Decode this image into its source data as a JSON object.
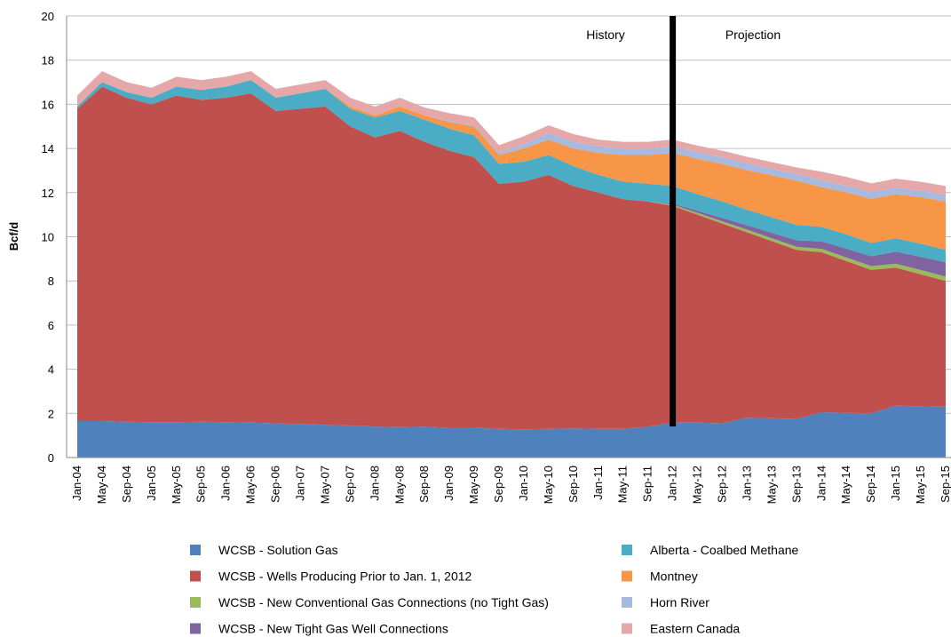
{
  "chart_data": {
    "type": "stacked_area",
    "y_label": "Bcf/d",
    "annotations": [
      "History",
      "Projection"
    ],
    "categories": [
      "Jan-04",
      "May-04",
      "Sep-04",
      "Jan-05",
      "May-05",
      "Sep-05",
      "Jan-06",
      "May-06",
      "Sep-06",
      "Jan-07",
      "May-07",
      "Sep-07",
      "Jan-08",
      "May-08",
      "Sep-08",
      "Jan-09",
      "May-09",
      "Sep-09",
      "Jan-10",
      "May-10",
      "Sep-10",
      "Jan-11",
      "May-11",
      "Sep-11",
      "Jan-12",
      "May-12",
      "Sep-12",
      "Jan-13",
      "May-13",
      "Sep-13",
      "Jan-14",
      "May-14",
      "Sep-14",
      "Jan-15",
      "May-15",
      "Sep-15"
    ],
    "ylim": [
      0,
      20
    ],
    "yticks": [
      0,
      2,
      4,
      6,
      8,
      10,
      12,
      14,
      16,
      18,
      20
    ],
    "grid": true,
    "series": [
      {
        "name": "WCSB - Solution Gas",
        "color": "#4f81bd",
        "values": [
          1.65,
          1.65,
          1.62,
          1.6,
          1.6,
          1.62,
          1.6,
          1.58,
          1.55,
          1.52,
          1.48,
          1.45,
          1.4,
          1.38,
          1.4,
          1.35,
          1.35,
          1.3,
          1.28,
          1.3,
          1.32,
          1.3,
          1.3,
          1.4,
          1.58,
          1.58,
          1.55,
          1.8,
          1.78,
          1.75,
          2.05,
          2.02,
          2.0,
          2.35,
          2.32,
          2.3
        ]
      },
      {
        "name": "WCSB - Wells Producing Prior to Jan. 1, 2012",
        "color": "#c0504d",
        "values": [
          14.15,
          15.15,
          14.68,
          14.4,
          14.8,
          14.58,
          14.7,
          14.92,
          14.15,
          14.28,
          14.42,
          13.55,
          13.1,
          13.42,
          12.9,
          12.55,
          12.25,
          11.1,
          11.22,
          11.5,
          10.98,
          10.7,
          10.4,
          10.2,
          9.82,
          9.42,
          9.05,
          8.4,
          8.02,
          7.65,
          7.25,
          6.88,
          6.5,
          6.25,
          5.98,
          5.7
        ]
      },
      {
        "name": "WCSB - New Conventional Gas Connections (no Tight Gas)",
        "color": "#9bbb59",
        "values": [
          0,
          0,
          0,
          0,
          0,
          0,
          0,
          0,
          0,
          0,
          0,
          0,
          0,
          0,
          0,
          0,
          0,
          0,
          0,
          0,
          0,
          0,
          0,
          0,
          0.05,
          0.08,
          0.1,
          0.12,
          0.13,
          0.14,
          0.15,
          0.16,
          0.17,
          0.18,
          0.19,
          0.2
        ]
      },
      {
        "name": "WCSB - New Tight Gas Well Connections",
        "color": "#8064a2",
        "values": [
          0,
          0,
          0,
          0,
          0,
          0,
          0,
          0,
          0,
          0,
          0,
          0,
          0,
          0,
          0,
          0,
          0,
          0,
          0,
          0,
          0,
          0,
          0,
          0,
          0.05,
          0.1,
          0.15,
          0.2,
          0.25,
          0.3,
          0.35,
          0.4,
          0.45,
          0.55,
          0.6,
          0.65
        ]
      },
      {
        "name": "Alberta - Coalbed Methane",
        "color": "#4bacc6",
        "values": [
          0.1,
          0.2,
          0.25,
          0.3,
          0.4,
          0.45,
          0.5,
          0.6,
          0.6,
          0.7,
          0.8,
          0.8,
          0.9,
          0.9,
          1.0,
          1.0,
          1.0,
          0.9,
          0.9,
          0.9,
          0.9,
          0.8,
          0.8,
          0.8,
          0.8,
          0.75,
          0.75,
          0.7,
          0.7,
          0.7,
          0.65,
          0.65,
          0.6,
          0.6,
          0.6,
          0.55
        ]
      },
      {
        "name": "Montney",
        "color": "#f79646",
        "values": [
          0,
          0,
          0,
          0,
          0,
          0,
          0,
          0,
          0,
          0,
          0,
          0.1,
          0.1,
          0.2,
          0.2,
          0.3,
          0.4,
          0.4,
          0.6,
          0.7,
          0.8,
          1.0,
          1.2,
          1.3,
          1.5,
          1.6,
          1.7,
          1.8,
          1.9,
          2.0,
          1.8,
          1.9,
          2.0,
          2.0,
          2.1,
          2.2
        ]
      },
      {
        "name": "Horn River",
        "color": "#a6b9de",
        "values": [
          0,
          0,
          0,
          0,
          0,
          0,
          0,
          0,
          0,
          0,
          0,
          0,
          0,
          0,
          0,
          0.05,
          0.05,
          0.1,
          0.2,
          0.3,
          0.3,
          0.3,
          0.3,
          0.3,
          0.3,
          0.3,
          0.3,
          0.3,
          0.3,
          0.3,
          0.3,
          0.3,
          0.3,
          0.3,
          0.3,
          0.3
        ]
      },
      {
        "name": "Eastern Canada",
        "color": "#e6a7a8",
        "values": [
          0.5,
          0.5,
          0.45,
          0.45,
          0.45,
          0.45,
          0.45,
          0.4,
          0.4,
          0.4,
          0.4,
          0.4,
          0.4,
          0.4,
          0.35,
          0.35,
          0.35,
          0.35,
          0.35,
          0.35,
          0.35,
          0.3,
          0.3,
          0.3,
          0.3,
          0.3,
          0.3,
          0.3,
          0.3,
          0.3,
          0.4,
          0.4,
          0.4,
          0.4,
          0.4,
          0.4
        ]
      }
    ]
  }
}
